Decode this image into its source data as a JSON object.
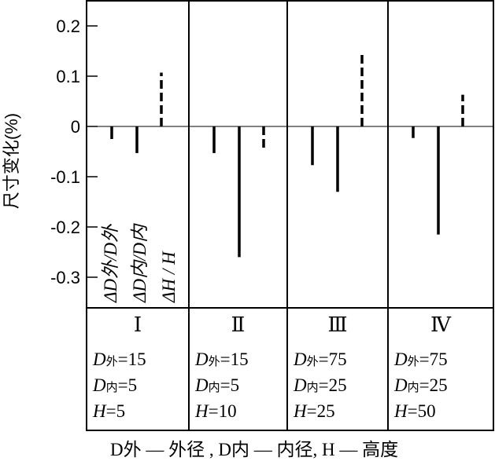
{
  "chart_data": {
    "type": "bar",
    "title": "",
    "ylabel": "尺寸变化(%)",
    "xlabel": "",
    "ylim": [
      -0.35,
      0.25
    ],
    "yticks": [
      "0.2",
      "0.1",
      "0",
      "-0.1",
      "-0.2",
      "-0.3"
    ],
    "ytick_values": [
      0.2,
      0.1,
      0,
      -0.1,
      -0.2,
      -0.3
    ],
    "legend": [
      "ΔD外/D外",
      "ΔD内/D内",
      "ΔH / H"
    ],
    "categories": [
      "Ⅰ",
      "Ⅱ",
      "Ⅲ",
      "Ⅳ"
    ],
    "series": [
      {
        "name": "ΔD外/D外",
        "style": "solid",
        "values": [
          -0.025,
          -0.053,
          -0.077,
          -0.023
        ]
      },
      {
        "name": "ΔD内/D内",
        "style": "solid",
        "values": [
          -0.053,
          -0.26,
          -0.13,
          -0.215
        ]
      },
      {
        "name": "ΔH/H",
        "style": "dashed",
        "values": [
          0.107,
          -0.045,
          0.145,
          0.063
        ]
      }
    ],
    "params": [
      {
        "D外": "=15",
        "D内": "=5",
        "H": "=5"
      },
      {
        "D外": "=15",
        "D内": "=5",
        "H": "=10"
      },
      {
        "D外": "=75",
        "D内": "=25",
        "H": "=25"
      },
      {
        "D外": "=75",
        "D内": "=25",
        "H": "=50"
      }
    ],
    "footnote": "D外 — 外径 , D内 — 内径, H — 高度"
  }
}
